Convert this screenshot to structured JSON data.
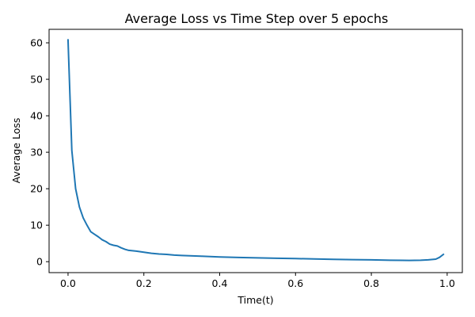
{
  "chart_data": {
    "type": "line",
    "title": "Average Loss vs Time Step over 5 epochs",
    "xlabel": "Time(t)",
    "ylabel": "Average Loss",
    "xlim": [
      -0.05,
      1.04
    ],
    "ylim": [
      -3.0,
      63.7
    ],
    "xticks": [
      0.0,
      0.2,
      0.4,
      0.6,
      0.8,
      1.0
    ],
    "xtick_labels": [
      "0.0",
      "0.2",
      "0.4",
      "0.6",
      "0.8",
      "1.0"
    ],
    "yticks": [
      0,
      10,
      20,
      30,
      40,
      50,
      60
    ],
    "ytick_labels": [
      "0",
      "10",
      "20",
      "30",
      "40",
      "50",
      "60"
    ],
    "grid": false,
    "legend": "none",
    "series": [
      {
        "color": "#1f77b4",
        "x": [
          0.0,
          0.01,
          0.02,
          0.03,
          0.04,
          0.05,
          0.06,
          0.07,
          0.08,
          0.09,
          0.1,
          0.11,
          0.12,
          0.13,
          0.14,
          0.15,
          0.16,
          0.17,
          0.18,
          0.2,
          0.22,
          0.24,
          0.26,
          0.28,
          0.3,
          0.35,
          0.4,
          0.45,
          0.5,
          0.55,
          0.6,
          0.65,
          0.7,
          0.75,
          0.8,
          0.85,
          0.9,
          0.93,
          0.95,
          0.97,
          0.98,
          0.99
        ],
        "y": [
          60.8,
          30.5,
          20.0,
          15.0,
          12.0,
          10.0,
          8.2,
          7.5,
          6.8,
          6.0,
          5.5,
          4.8,
          4.5,
          4.3,
          3.8,
          3.4,
          3.1,
          3.0,
          2.9,
          2.6,
          2.3,
          2.1,
          2.0,
          1.8,
          1.7,
          1.5,
          1.3,
          1.15,
          1.05,
          0.95,
          0.85,
          0.75,
          0.65,
          0.55,
          0.5,
          0.4,
          0.35,
          0.4,
          0.5,
          0.7,
          1.2,
          2.0
        ]
      }
    ]
  }
}
